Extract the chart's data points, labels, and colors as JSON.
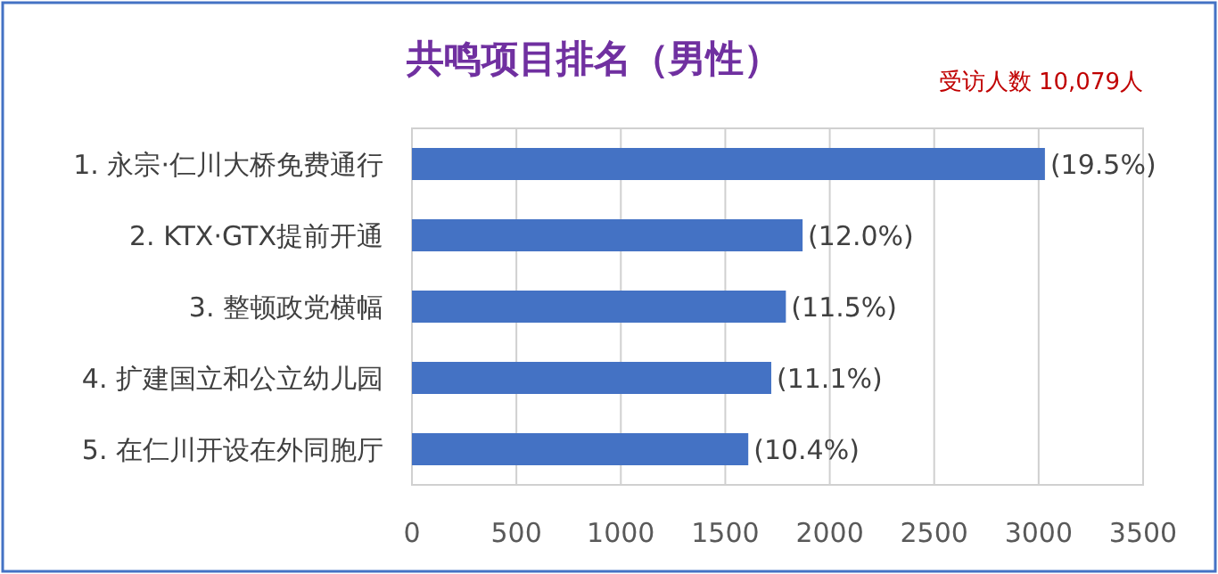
{
  "chart_data": {
    "type": "bar",
    "orientation": "horizontal",
    "title": "共鸣项目排名（男性）",
    "annotations": [
      "受访人数 10,079人",
      {
        "text": "(19.5%)",
        "x": 3030,
        "y": "1. 永宗·仁川大桥免费通行"
      },
      {
        "text": "(12.0%)",
        "x": 1870,
        "y": "2. KTX·GTX提前开通"
      },
      {
        "text": "(11.5%)",
        "x": 1790,
        "y": "3. 整顿政党横幅"
      },
      {
        "text": "(11.1%)",
        "x": 1720,
        "y": "4. 扩建国立和公立幼儿园"
      },
      {
        "text": "(10.4%)",
        "x": 1610,
        "y": "5. 在仁川开设在外同胞厅"
      }
    ],
    "categories": [
      "1. 永宗·仁川大桥免费通行",
      "2. KTX·GTX提前开通",
      "3. 整顿政党横幅",
      "4. 扩建国立和公立幼儿园",
      "5. 在仁川开设在外同胞厅"
    ],
    "values": [
      3030,
      1870,
      1790,
      1720,
      1610
    ],
    "color": "#4472c4",
    "xlim": [
      0,
      3500
    ],
    "xticks": [
      0,
      500,
      1000,
      1500,
      2000,
      2500,
      3000,
      3500
    ],
    "grid": "x"
  }
}
